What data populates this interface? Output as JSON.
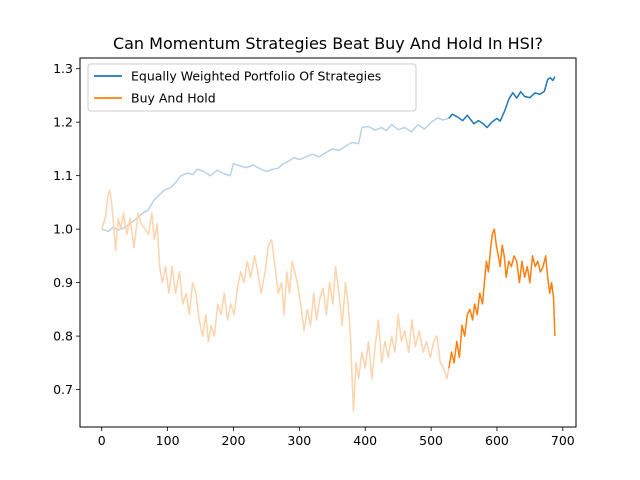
{
  "chart_data": {
    "type": "line",
    "title": "Can Momentum Strategies Beat Buy And Hold In HSI?",
    "xlabel": "",
    "ylabel": "",
    "xlim": [
      -33,
      720
    ],
    "ylim": [
      0.63,
      1.32
    ],
    "x_ticks": [
      0,
      100,
      200,
      300,
      400,
      500,
      600,
      700
    ],
    "y_ticks": [
      0.7,
      0.8,
      0.9,
      1.0,
      1.1,
      1.2,
      1.3
    ],
    "grid": false,
    "legend_position": "upper-left",
    "highlight_from_x": 527,
    "series": [
      {
        "name": "Equally Weighted Portfolio Of Strategies",
        "color": "#1f77b4",
        "faded_color": "#b7d3e7",
        "points": [
          [
            0,
            1.0
          ],
          [
            10,
            0.996
          ],
          [
            18,
            1.004
          ],
          [
            25,
            0.998
          ],
          [
            35,
            1.003
          ],
          [
            45,
            1.012
          ],
          [
            55,
            1.022
          ],
          [
            62,
            1.03
          ],
          [
            70,
            1.035
          ],
          [
            80,
            1.055
          ],
          [
            88,
            1.065
          ],
          [
            95,
            1.073
          ],
          [
            105,
            1.078
          ],
          [
            113,
            1.088
          ],
          [
            120,
            1.1
          ],
          [
            130,
            1.105
          ],
          [
            138,
            1.102
          ],
          [
            145,
            1.112
          ],
          [
            155,
            1.108
          ],
          [
            165,
            1.1
          ],
          [
            175,
            1.11
          ],
          [
            185,
            1.104
          ],
          [
            195,
            1.1
          ],
          [
            200,
            1.123
          ],
          [
            210,
            1.118
          ],
          [
            220,
            1.115
          ],
          [
            230,
            1.12
          ],
          [
            240,
            1.113
          ],
          [
            250,
            1.108
          ],
          [
            260,
            1.112
          ],
          [
            268,
            1.114
          ],
          [
            275,
            1.122
          ],
          [
            285,
            1.128
          ],
          [
            292,
            1.134
          ],
          [
            300,
            1.13
          ],
          [
            310,
            1.135
          ],
          [
            320,
            1.14
          ],
          [
            330,
            1.135
          ],
          [
            340,
            1.143
          ],
          [
            350,
            1.15
          ],
          [
            360,
            1.147
          ],
          [
            370,
            1.155
          ],
          [
            380,
            1.162
          ],
          [
            390,
            1.16
          ],
          [
            395,
            1.19
          ],
          [
            405,
            1.192
          ],
          [
            415,
            1.185
          ],
          [
            425,
            1.19
          ],
          [
            432,
            1.184
          ],
          [
            440,
            1.196
          ],
          [
            450,
            1.186
          ],
          [
            460,
            1.19
          ],
          [
            470,
            1.182
          ],
          [
            480,
            1.195
          ],
          [
            490,
            1.187
          ],
          [
            500,
            1.2
          ],
          [
            510,
            1.208
          ],
          [
            518,
            1.204
          ],
          [
            527,
            1.207
          ],
          [
            532,
            1.215
          ],
          [
            540,
            1.21
          ],
          [
            548,
            1.203
          ],
          [
            555,
            1.213
          ],
          [
            560,
            1.205
          ],
          [
            565,
            1.197
          ],
          [
            572,
            1.203
          ],
          [
            578,
            1.198
          ],
          [
            585,
            1.19
          ],
          [
            592,
            1.2
          ],
          [
            600,
            1.207
          ],
          [
            605,
            1.202
          ],
          [
            612,
            1.222
          ],
          [
            618,
            1.243
          ],
          [
            624,
            1.255
          ],
          [
            630,
            1.245
          ],
          [
            636,
            1.257
          ],
          [
            642,
            1.248
          ],
          [
            650,
            1.246
          ],
          [
            658,
            1.255
          ],
          [
            665,
            1.252
          ],
          [
            672,
            1.258
          ],
          [
            677,
            1.28
          ],
          [
            681,
            1.283
          ],
          [
            685,
            1.278
          ],
          [
            688,
            1.285
          ]
        ]
      },
      {
        "name": "Buy And Hold",
        "color": "#ff7f0e",
        "faded_color": "#ffd3ab",
        "points": [
          [
            0,
            1.0
          ],
          [
            6,
            1.025
          ],
          [
            9,
            1.06
          ],
          [
            12,
            1.073
          ],
          [
            15,
            1.05
          ],
          [
            18,
            1.01
          ],
          [
            21,
            0.96
          ],
          [
            25,
            1.02
          ],
          [
            29,
            1.0
          ],
          [
            33,
            1.03
          ],
          [
            38,
            0.99
          ],
          [
            43,
            1.02
          ],
          [
            49,
            0.965
          ],
          [
            55,
            1.03
          ],
          [
            60,
            1.01
          ],
          [
            66,
            1.0
          ],
          [
            71,
            0.99
          ],
          [
            76,
            1.03
          ],
          [
            80,
            0.98
          ],
          [
            84,
            1.01
          ],
          [
            88,
            0.93
          ],
          [
            92,
            0.9
          ],
          [
            97,
            0.93
          ],
          [
            102,
            0.88
          ],
          [
            107,
            0.93
          ],
          [
            112,
            0.88
          ],
          [
            118,
            0.92
          ],
          [
            123,
            0.86
          ],
          [
            128,
            0.88
          ],
          [
            133,
            0.84
          ],
          [
            138,
            0.9
          ],
          [
            143,
            0.88
          ],
          [
            148,
            0.83
          ],
          [
            153,
            0.8
          ],
          [
            158,
            0.84
          ],
          [
            162,
            0.79
          ],
          [
            166,
            0.82
          ],
          [
            171,
            0.8
          ],
          [
            176,
            0.86
          ],
          [
            181,
            0.84
          ],
          [
            186,
            0.88
          ],
          [
            191,
            0.83
          ],
          [
            196,
            0.86
          ],
          [
            201,
            0.84
          ],
          [
            206,
            0.89
          ],
          [
            211,
            0.92
          ],
          [
            216,
            0.9
          ],
          [
            221,
            0.94
          ],
          [
            226,
            0.91
          ],
          [
            232,
            0.95
          ],
          [
            237,
            0.92
          ],
          [
            242,
            0.88
          ],
          [
            248,
            0.92
          ],
          [
            253,
            0.97
          ],
          [
            258,
            0.98
          ],
          [
            263,
            0.93
          ],
          [
            268,
            0.88
          ],
          [
            273,
            0.9
          ],
          [
            277,
            0.84
          ],
          [
            281,
            0.92
          ],
          [
            285,
            0.88
          ],
          [
            289,
            0.94
          ],
          [
            293,
            0.92
          ],
          [
            297,
            0.9
          ],
          [
            302,
            0.86
          ],
          [
            307,
            0.81
          ],
          [
            312,
            0.85
          ],
          [
            317,
            0.82
          ],
          [
            322,
            0.88
          ],
          [
            326,
            0.83
          ],
          [
            331,
            0.87
          ],
          [
            336,
            0.89
          ],
          [
            341,
            0.84
          ],
          [
            346,
            0.9
          ],
          [
            351,
            0.86
          ],
          [
            355,
            0.93
          ],
          [
            360,
            0.88
          ],
          [
            365,
            0.82
          ],
          [
            370,
            0.9
          ],
          [
            374,
            0.86
          ],
          [
            378,
            0.79
          ],
          [
            382,
            0.66
          ],
          [
            386,
            0.75
          ],
          [
            390,
            0.72
          ],
          [
            395,
            0.77
          ],
          [
            400,
            0.74
          ],
          [
            405,
            0.79
          ],
          [
            410,
            0.72
          ],
          [
            415,
            0.78
          ],
          [
            420,
            0.83
          ],
          [
            425,
            0.75
          ],
          [
            430,
            0.79
          ],
          [
            435,
            0.76
          ],
          [
            440,
            0.8
          ],
          [
            445,
            0.77
          ],
          [
            450,
            0.84
          ],
          [
            455,
            0.79
          ],
          [
            460,
            0.81
          ],
          [
            466,
            0.77
          ],
          [
            471,
            0.83
          ],
          [
            476,
            0.78
          ],
          [
            482,
            0.81
          ],
          [
            488,
            0.77
          ],
          [
            493,
            0.79
          ],
          [
            499,
            0.76
          ],
          [
            504,
            0.79
          ],
          [
            509,
            0.8
          ],
          [
            514,
            0.75
          ],
          [
            519,
            0.74
          ],
          [
            524,
            0.72
          ],
          [
            527,
            0.74
          ],
          [
            531,
            0.77
          ],
          [
            535,
            0.75
          ],
          [
            539,
            0.79
          ],
          [
            543,
            0.76
          ],
          [
            547,
            0.82
          ],
          [
            551,
            0.8
          ],
          [
            555,
            0.84
          ],
          [
            559,
            0.85
          ],
          [
            563,
            0.83
          ],
          [
            566,
            0.86
          ],
          [
            570,
            0.84
          ],
          [
            574,
            0.88
          ],
          [
            578,
            0.86
          ],
          [
            581,
            0.9
          ],
          [
            584,
            0.94
          ],
          [
            587,
            0.92
          ],
          [
            590,
            0.96
          ],
          [
            593,
            0.99
          ],
          [
            596,
            1.0
          ],
          [
            599,
            0.97
          ],
          [
            602,
            0.95
          ],
          [
            605,
            0.93
          ],
          [
            608,
            0.97
          ],
          [
            611,
            0.95
          ],
          [
            614,
            0.91
          ],
          [
            618,
            0.94
          ],
          [
            622,
            0.93
          ],
          [
            626,
            0.95
          ],
          [
            630,
            0.94
          ],
          [
            634,
            0.9
          ],
          [
            638,
            0.94
          ],
          [
            642,
            0.91
          ],
          [
            646,
            0.93
          ],
          [
            650,
            0.9
          ],
          [
            654,
            0.95
          ],
          [
            658,
            0.93
          ],
          [
            662,
            0.94
          ],
          [
            666,
            0.92
          ],
          [
            670,
            0.93
          ],
          [
            674,
            0.95
          ],
          [
            677,
            0.91
          ],
          [
            680,
            0.88
          ],
          [
            683,
            0.9
          ],
          [
            686,
            0.87
          ],
          [
            688,
            0.8
          ]
        ]
      }
    ]
  }
}
